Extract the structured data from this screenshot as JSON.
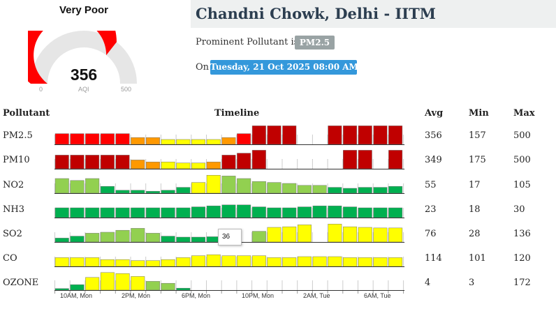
{
  "gauge": {
    "category": "Very Poor",
    "value": "356",
    "value_num": 356,
    "min_label": "0",
    "max_label": "500",
    "unit_label": "AQI",
    "color": "#ff0000"
  },
  "station": {
    "name": "Chandni Chowk, Delhi - IITM"
  },
  "prominent": {
    "prefix": "Prominent Pollutant is",
    "pollutant": "PM2.5"
  },
  "date": {
    "prefix": "On",
    "value": "Tuesday, 21 Oct 2025 08:00 AM"
  },
  "table": {
    "headers": {
      "pollutant": "Pollutant",
      "timeline": "Timeline",
      "avg": "Avg",
      "min": "Min",
      "max": "Max"
    },
    "rows": [
      {
        "name": "PM2.5",
        "avg": "356",
        "min": "157",
        "max": "500"
      },
      {
        "name": "PM10",
        "avg": "349",
        "min": "175",
        "max": "500"
      },
      {
        "name": "NO2",
        "avg": "55",
        "min": "17",
        "max": "105"
      },
      {
        "name": "NH3",
        "avg": "23",
        "min": "18",
        "max": "30"
      },
      {
        "name": "SO2",
        "avg": "76",
        "min": "28",
        "max": "136"
      },
      {
        "name": "CO",
        "avg": "114",
        "min": "101",
        "max": "120"
      },
      {
        "name": "OZONE",
        "avg": "4",
        "min": "3",
        "max": "172"
      }
    ]
  },
  "timeline": {
    "x_labels": [
      "10AM, Mon",
      "2PM, Mon",
      "6PM, Mon",
      "10PM, Mon",
      "2AM, Tue",
      "6AM, Tue"
    ],
    "tooltip": "36",
    "colors": {
      "severe": "#c00000",
      "very_poor": "#ff0000",
      "poor": "#ff9900",
      "moderate": "#ffff00",
      "satisfactory": "#92d050",
      "good": "#00b050"
    },
    "series": [
      {
        "pollutant": "PM2.5",
        "levels": [
          0.55,
          0.55,
          0.55,
          0.55,
          0.55,
          0.35,
          0.35,
          0.25,
          0.25,
          0.25,
          0.25,
          0.35,
          0.55,
          0.95,
          0.95,
          0.95,
          0,
          0,
          0.95,
          0.95,
          0.95,
          0.95,
          0.95
        ],
        "colors": [
          "very_poor",
          "very_poor",
          "very_poor",
          "very_poor",
          "very_poor",
          "poor",
          "poor",
          "moderate",
          "moderate",
          "moderate",
          "moderate",
          "poor",
          "very_poor",
          "severe",
          "severe",
          "severe",
          "",
          "",
          "severe",
          "severe",
          "severe",
          "severe",
          "severe"
        ]
      },
      {
        "pollutant": "PM10",
        "levels": [
          0.7,
          0.7,
          0.7,
          0.7,
          0.7,
          0.45,
          0.35,
          0.35,
          0.3,
          0.3,
          0.35,
          0.7,
          0.8,
          0.95,
          0,
          0,
          0,
          0,
          0,
          0.95,
          0.95,
          0,
          0.95
        ],
        "colors": [
          "severe",
          "severe",
          "severe",
          "severe",
          "severe",
          "poor",
          "poor",
          "moderate",
          "moderate",
          "moderate",
          "poor",
          "severe",
          "severe",
          "severe",
          "",
          "",
          "",
          "",
          "",
          "severe",
          "severe",
          "",
          "severe"
        ]
      },
      {
        "pollutant": "NO2",
        "levels": [
          0.75,
          0.65,
          0.75,
          0.35,
          0.15,
          0.15,
          0.1,
          0.15,
          0.3,
          0.55,
          0.92,
          0.88,
          0.75,
          0.6,
          0.55,
          0.5,
          0.4,
          0.4,
          0.3,
          0.25,
          0.3,
          0.3,
          0.35
        ],
        "colors": [
          "satisfactory",
          "satisfactory",
          "satisfactory",
          "good",
          "good",
          "good",
          "good",
          "good",
          "good",
          "moderate",
          "moderate",
          "satisfactory",
          "satisfactory",
          "satisfactory",
          "satisfactory",
          "satisfactory",
          "satisfactory",
          "satisfactory",
          "good",
          "good",
          "good",
          "good",
          "good"
        ]
      },
      {
        "pollutant": "NH3",
        "levels": [
          0.5,
          0.5,
          0.5,
          0.5,
          0.5,
          0.5,
          0.5,
          0.5,
          0.5,
          0.55,
          0.6,
          0.65,
          0.65,
          0.55,
          0.5,
          0.5,
          0.55,
          0.6,
          0.6,
          0.55,
          0.5,
          0.5,
          0.5
        ],
        "colors": [
          "good",
          "good",
          "good",
          "good",
          "good",
          "good",
          "good",
          "good",
          "good",
          "good",
          "good",
          "good",
          "good",
          "good",
          "good",
          "good",
          "good",
          "good",
          "good",
          "good",
          "good",
          "good",
          "good"
        ]
      },
      {
        "pollutant": "SO2",
        "levels": [
          0.2,
          0.3,
          0.45,
          0.5,
          0.6,
          0.7,
          0.45,
          0.3,
          0.25,
          0.25,
          0.27,
          0,
          0,
          0.55,
          0.75,
          0.78,
          0.88,
          0,
          0.92,
          0.78,
          0.75,
          0.72,
          0.72
        ],
        "colors": [
          "good",
          "good",
          "satisfactory",
          "satisfactory",
          "satisfactory",
          "satisfactory",
          "satisfactory",
          "good",
          "good",
          "good",
          "good",
          "",
          "",
          "satisfactory",
          "moderate",
          "moderate",
          "moderate",
          "",
          "moderate",
          "moderate",
          "moderate",
          "moderate",
          "moderate"
        ]
      },
      {
        "pollutant": "CO",
        "levels": [
          0.45,
          0.45,
          0.45,
          0.35,
          0.35,
          0.3,
          0.3,
          0.35,
          0.45,
          0.55,
          0.6,
          0.55,
          0.55,
          0.55,
          0.45,
          0.45,
          0.5,
          0.5,
          0.5,
          0.45,
          0.45,
          0.45,
          0.45
        ],
        "colors": [
          "moderate",
          "moderate",
          "moderate",
          "moderate",
          "moderate",
          "moderate",
          "moderate",
          "moderate",
          "moderate",
          "moderate",
          "moderate",
          "moderate",
          "moderate",
          "moderate",
          "moderate",
          "moderate",
          "moderate",
          "moderate",
          "moderate",
          "moderate",
          "moderate",
          "moderate",
          "moderate"
        ]
      },
      {
        "pollutant": "OZONE",
        "levels": [
          0.08,
          0.28,
          0.65,
          0.9,
          0.85,
          0.7,
          0.45,
          0.35,
          0.1,
          0,
          0,
          0,
          0,
          0,
          0,
          0,
          0,
          0,
          0,
          0,
          0,
          0,
          0
        ],
        "colors": [
          "good",
          "good",
          "moderate",
          "moderate",
          "moderate",
          "moderate",
          "satisfactory",
          "satisfactory",
          "good",
          "",
          "",
          "",
          "",
          "",
          "",
          "",
          "",
          "",
          "",
          "",
          "",
          "",
          ""
        ]
      }
    ]
  }
}
